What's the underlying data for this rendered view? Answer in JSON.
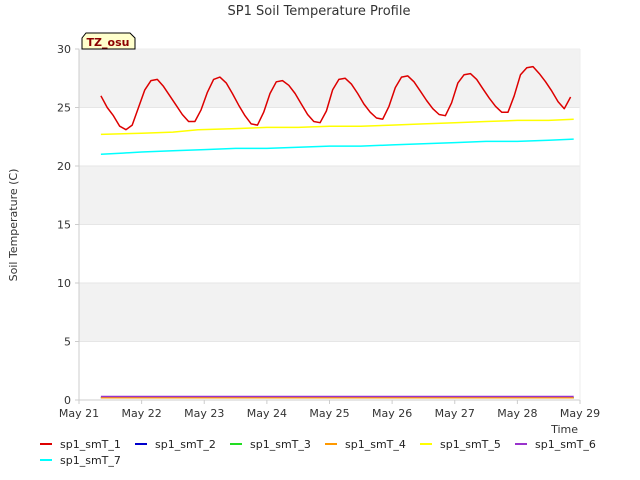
{
  "colors": {
    "plot_band": "#f2f2f2",
    "grid": "#ffffff",
    "axis": "#cccccc",
    "tz_badge_fill": "#ffffcc",
    "tz_badge_text": "#8b0000"
  },
  "chart_data": {
    "type": "line",
    "title": "SP1 Soil Temperature Profile",
    "xlabel": "Time",
    "ylabel": "Soil Temperature (C)",
    "badge": "TZ_osu",
    "xlim": [
      21,
      29
    ],
    "ylim": [
      0,
      30
    ],
    "grid": true,
    "legend_position": "bottom",
    "x_ticks": [
      {
        "value": 21,
        "label": "May 21"
      },
      {
        "value": 22,
        "label": "May 22"
      },
      {
        "value": 23,
        "label": "May 23"
      },
      {
        "value": 24,
        "label": "May 24"
      },
      {
        "value": 25,
        "label": "May 25"
      },
      {
        "value": 26,
        "label": "May 26"
      },
      {
        "value": 27,
        "label": "May 27"
      },
      {
        "value": 28,
        "label": "May 28"
      },
      {
        "value": 29,
        "label": "May 29"
      }
    ],
    "y_ticks": [
      0,
      5,
      10,
      15,
      20,
      25,
      30
    ],
    "series": [
      {
        "name": "sp1_smT_1",
        "color": "#dd0000",
        "x": [
          21.35,
          21.45,
          21.55,
          21.65,
          21.75,
          21.85,
          21.95,
          22.05,
          22.15,
          22.25,
          22.35,
          22.45,
          22.55,
          22.65,
          22.75,
          22.85,
          22.95,
          23.05,
          23.15,
          23.25,
          23.35,
          23.45,
          23.55,
          23.65,
          23.75,
          23.85,
          23.95,
          24.05,
          24.15,
          24.25,
          24.35,
          24.45,
          24.55,
          24.65,
          24.75,
          24.85,
          24.95,
          25.05,
          25.15,
          25.25,
          25.35,
          25.45,
          25.55,
          25.65,
          25.75,
          25.85,
          25.95,
          26.05,
          26.15,
          26.25,
          26.35,
          26.45,
          26.55,
          26.65,
          26.75,
          26.85,
          26.95,
          27.05,
          27.15,
          27.25,
          27.35,
          27.45,
          27.55,
          27.65,
          27.75,
          27.85,
          27.95,
          28.05,
          28.15,
          28.25,
          28.35,
          28.45,
          28.55,
          28.65,
          28.75,
          28.85
        ],
        "y": [
          26.0,
          25.0,
          24.3,
          23.4,
          23.1,
          23.5,
          25.0,
          26.5,
          27.3,
          27.4,
          26.8,
          26.0,
          25.2,
          24.4,
          23.8,
          23.8,
          24.8,
          26.3,
          27.4,
          27.6,
          27.1,
          26.2,
          25.2,
          24.3,
          23.6,
          23.5,
          24.6,
          26.2,
          27.2,
          27.3,
          26.9,
          26.2,
          25.3,
          24.4,
          23.8,
          23.7,
          24.7,
          26.5,
          27.4,
          27.5,
          27.0,
          26.2,
          25.3,
          24.6,
          24.1,
          24.0,
          25.1,
          26.7,
          27.6,
          27.7,
          27.2,
          26.4,
          25.6,
          24.9,
          24.4,
          24.3,
          25.4,
          27.1,
          27.8,
          27.9,
          27.4,
          26.6,
          25.8,
          25.1,
          24.6,
          24.6,
          26.0,
          27.8,
          28.4,
          28.5,
          27.9,
          27.2,
          26.4,
          25.5,
          24.9,
          25.9
        ]
      },
      {
        "name": "sp1_smT_2",
        "color": "#0000cc",
        "x": [
          21.35,
          28.9
        ],
        "y": [
          0.2,
          0.2
        ]
      },
      {
        "name": "sp1_smT_3",
        "color": "#22dd22",
        "x": [
          21.35,
          28.9
        ],
        "y": [
          0.2,
          0.2
        ]
      },
      {
        "name": "sp1_smT_4",
        "color": "#ff9900",
        "x": [
          21.35,
          28.9
        ],
        "y": [
          0.2,
          0.2
        ]
      },
      {
        "name": "sp1_smT_5",
        "color": "#ffff00",
        "x": [
          21.35,
          22.0,
          22.5,
          22.9,
          23.5,
          24.0,
          24.5,
          25.0,
          25.5,
          26.0,
          26.5,
          27.0,
          27.5,
          28.0,
          28.5,
          28.9
        ],
        "y": [
          22.7,
          22.8,
          22.9,
          23.1,
          23.2,
          23.3,
          23.3,
          23.4,
          23.4,
          23.5,
          23.6,
          23.7,
          23.8,
          23.9,
          23.9,
          24.0
        ]
      },
      {
        "name": "sp1_smT_6",
        "color": "#9933cc",
        "x": [
          21.35,
          28.9
        ],
        "y": [
          0.3,
          0.3
        ]
      },
      {
        "name": "sp1_smT_7",
        "color": "#00ffff",
        "x": [
          21.35,
          21.7,
          22.0,
          22.5,
          23.0,
          23.5,
          24.0,
          24.5,
          25.0,
          25.5,
          26.0,
          26.5,
          27.0,
          27.5,
          28.0,
          28.5,
          28.9
        ],
        "y": [
          21.0,
          21.1,
          21.2,
          21.3,
          21.4,
          21.5,
          21.5,
          21.6,
          21.7,
          21.7,
          21.8,
          21.9,
          22.0,
          22.1,
          22.1,
          22.2,
          22.3
        ]
      }
    ]
  }
}
